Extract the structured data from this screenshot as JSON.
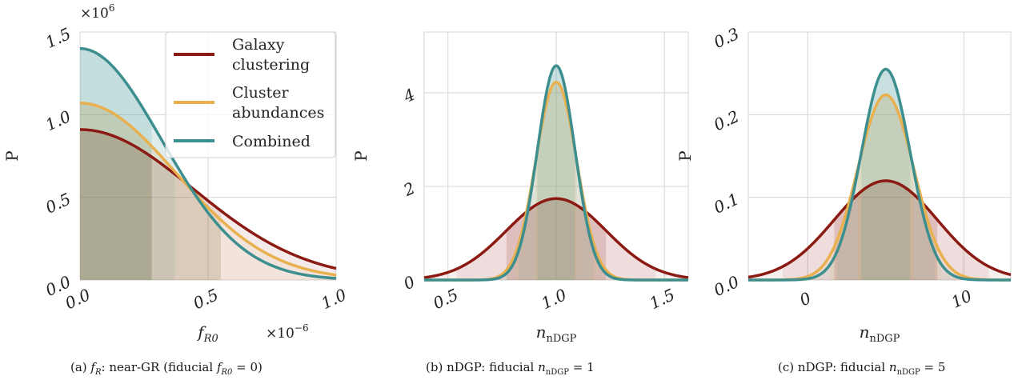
{
  "colors": {
    "galaxy": "#8b1a12",
    "cluster": "#e8b04e",
    "combined": "#3d8e8e",
    "grid": "#d6d6d6"
  },
  "legend": [
    "Galaxy clustering",
    "Cluster abundances",
    "Combined"
  ],
  "captions": [
    "(a) f_R: near-GR (fiducial f_R0 = 0)",
    "(b) nDGP: fiducial n_nDGP = 1",
    "(c) nDGP: fiducial n_nDGP = 5"
  ],
  "chart_data": [
    {
      "type": "line",
      "title": "(a) f_R: near-GR (fiducial f_R0 = 0)",
      "xlabel": "f_R0",
      "ylabel": "P",
      "x_multiplier": "×10^-6",
      "y_multiplier": "×10^6",
      "xlim": [
        0,
        1.0
      ],
      "ylim": [
        0,
        1.5
      ],
      "xticks": [
        0.0,
        0.5,
        1.0
      ],
      "yticks": [
        0.0,
        0.5,
        1.0,
        1.5
      ],
      "xtick_labels": [
        "0.0",
        "0.5",
        "1.0"
      ],
      "ytick_labels": [
        "0.0",
        "0.5",
        "1.0",
        "1.5"
      ],
      "legend_position": "top-right",
      "grid": true,
      "series": [
        {
          "name": "Galaxy clustering",
          "color": "#8b1a12",
          "shape": "half-gaussian",
          "x": [
            0,
            0.1,
            0.2,
            0.3,
            0.4,
            0.5,
            0.6,
            0.7,
            0.8,
            0.9,
            1.0
          ],
          "y": [
            0.91,
            0.89,
            0.83,
            0.74,
            0.63,
            0.51,
            0.4,
            0.29,
            0.2,
            0.13,
            0.07
          ],
          "bands_x": [
            0.28,
            0.55,
            1.0
          ]
        },
        {
          "name": "Cluster abundances",
          "color": "#e8b04e",
          "shape": "half-gaussian",
          "x": [
            0,
            0.1,
            0.2,
            0.3,
            0.4,
            0.5,
            0.6,
            0.7,
            0.8,
            0.9,
            1.0
          ],
          "y": [
            1.07,
            1.04,
            0.94,
            0.8,
            0.63,
            0.47,
            0.32,
            0.2,
            0.12,
            0.06,
            0.03
          ],
          "bands_x": [
            0.28,
            0.55,
            1.0
          ]
        },
        {
          "name": "Combined",
          "color": "#3d8e8e",
          "shape": "half-gaussian",
          "x": [
            0,
            0.1,
            0.2,
            0.3,
            0.4,
            0.5,
            0.6,
            0.7,
            0.8,
            0.9,
            1.0
          ],
          "y": [
            1.4,
            1.35,
            1.18,
            0.95,
            0.69,
            0.45,
            0.27,
            0.14,
            0.07,
            0.03,
            0.01
          ],
          "bands_x": [
            0.28,
            0.37,
            0.55
          ]
        }
      ]
    },
    {
      "type": "line",
      "title": "(b) nDGP: fiducial n_nDGP = 1",
      "xlabel": "n_nDGP",
      "ylabel": "P",
      "xlim": [
        0.39,
        1.61
      ],
      "ylim": [
        0,
        5.3
      ],
      "xticks": [
        0.5,
        1.0,
        1.5
      ],
      "yticks": [
        0,
        2,
        4
      ],
      "xtick_labels": [
        "0.5",
        "1.0",
        "1.5"
      ],
      "ytick_labels": [
        "0",
        "2",
        "4"
      ],
      "grid": true,
      "series": [
        {
          "name": "Galaxy clustering",
          "color": "#8b1a12",
          "mean": 1.0,
          "sigma": 0.23,
          "peak": 1.74
        },
        {
          "name": "Cluster abundances",
          "color": "#e8b04e",
          "mean": 1.0,
          "sigma": 0.094,
          "peak": 4.23
        },
        {
          "name": "Combined",
          "color": "#3d8e8e",
          "mean": 1.0,
          "sigma": 0.087,
          "peak": 4.58
        }
      ]
    },
    {
      "type": "line",
      "title": "(c) nDGP: fiducial n_nDGP = 5",
      "xlabel": "n_nDGP",
      "ylabel": "P",
      "xlim": [
        -3.8,
        13.0
      ],
      "ylim": [
        0,
        0.3
      ],
      "xticks": [
        0,
        10
      ],
      "yticks": [
        0.0,
        0.1,
        0.2,
        0.3
      ],
      "xtick_labels": [
        "0",
        "10"
      ],
      "ytick_labels": [
        "0.0",
        "0.1",
        "0.2",
        "0.3"
      ],
      "grid": true,
      "series": [
        {
          "name": "Galaxy clustering",
          "color": "#8b1a12",
          "mean": 5.0,
          "sigma": 3.3,
          "peak": 0.12
        },
        {
          "name": "Cluster abundances",
          "color": "#e8b04e",
          "mean": 5.0,
          "sigma": 1.78,
          "peak": 0.224
        },
        {
          "name": "Combined",
          "color": "#3d8e8e",
          "mean": 5.0,
          "sigma": 1.56,
          "peak": 0.255
        }
      ]
    }
  ]
}
